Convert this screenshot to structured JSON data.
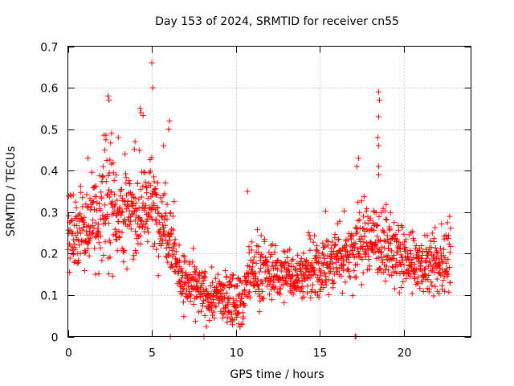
{
  "chart_data": {
    "type": "scatter",
    "title": "Day 153 of 2024, SRMTID for receiver cn55",
    "xlabel": "GPS time / hours",
    "ylabel": "SRMTID / TECUs",
    "xlim": [
      0,
      24.0
    ],
    "ylim": [
      0,
      0.7
    ],
    "xticks": [
      0,
      5,
      10,
      15,
      20
    ],
    "yticks": [
      0,
      0.1,
      0.2,
      0.3,
      0.4,
      0.5,
      0.6,
      0.7
    ],
    "grid": true,
    "marker": "+",
    "color": "#ff0000",
    "series_trend": {
      "x": [
        0,
        0.5,
        1,
        1.5,
        2,
        2.5,
        3,
        3.5,
        4,
        4.5,
        5,
        5.5,
        6,
        6.3,
        6.6,
        7,
        7.5,
        8,
        8.5,
        9,
        9.5,
        10,
        10.4,
        10.8,
        11.5,
        12,
        13,
        14,
        15,
        16,
        17,
        17.5,
        18,
        18.5,
        19,
        20,
        21,
        22,
        22.8
      ],
      "y": [
        0.25,
        0.26,
        0.26,
        0.28,
        0.31,
        0.34,
        0.3,
        0.29,
        0.3,
        0.31,
        0.32,
        0.28,
        0.27,
        0.22,
        0.15,
        0.13,
        0.12,
        0.1,
        0.09,
        0.1,
        0.09,
        0.1,
        0.08,
        0.15,
        0.16,
        0.15,
        0.15,
        0.15,
        0.16,
        0.19,
        0.21,
        0.23,
        0.24,
        0.23,
        0.21,
        0.18,
        0.17,
        0.17,
        0.19
      ],
      "spread": [
        0.06,
        0.06,
        0.07,
        0.07,
        0.08,
        0.1,
        0.08,
        0.07,
        0.07,
        0.08,
        0.07,
        0.06,
        0.07,
        0.05,
        0.04,
        0.04,
        0.04,
        0.04,
        0.04,
        0.04,
        0.04,
        0.04,
        0.04,
        0.05,
        0.05,
        0.04,
        0.04,
        0.04,
        0.05,
        0.05,
        0.06,
        0.07,
        0.06,
        0.06,
        0.05,
        0.05,
        0.04,
        0.05,
        0.05
      ]
    },
    "n_points": 1600,
    "notable_points": [
      {
        "x": 5.0,
        "y": 0.66
      },
      {
        "x": 5.05,
        "y": 0.6
      },
      {
        "x": 2.4,
        "y": 0.58
      },
      {
        "x": 2.45,
        "y": 0.57
      },
      {
        "x": 18.5,
        "y": 0.59
      },
      {
        "x": 18.55,
        "y": 0.57
      },
      {
        "x": 18.5,
        "y": 0.53
      },
      {
        "x": 18.45,
        "y": 0.48
      },
      {
        "x": 18.5,
        "y": 0.46
      },
      {
        "x": 4.3,
        "y": 0.55
      },
      {
        "x": 4.35,
        "y": 0.54
      },
      {
        "x": 6.05,
        "y": 0.52
      },
      {
        "x": 17.3,
        "y": 0.43
      },
      {
        "x": 17.2,
        "y": 0.41
      },
      {
        "x": 18.5,
        "y": 0.41
      },
      {
        "x": 18.5,
        "y": 0.39
      },
      {
        "x": 10.7,
        "y": 0.35
      },
      {
        "x": 8.1,
        "y": 0.0
      },
      {
        "x": 6.1,
        "y": 0.0
      },
      {
        "x": 10.4,
        "y": 0.03
      },
      {
        "x": 17.1,
        "y": 0.0
      },
      {
        "x": 17.15,
        "y": 0.0
      },
      {
        "x": 2.6,
        "y": 0.49
      },
      {
        "x": 3.0,
        "y": 0.48
      },
      {
        "x": 3.4,
        "y": 0.44
      },
      {
        "x": 1.2,
        "y": 0.43
      },
      {
        "x": 4.0,
        "y": 0.47
      },
      {
        "x": 5.7,
        "y": 0.46
      },
      {
        "x": 6.0,
        "y": 0.5
      }
    ]
  }
}
